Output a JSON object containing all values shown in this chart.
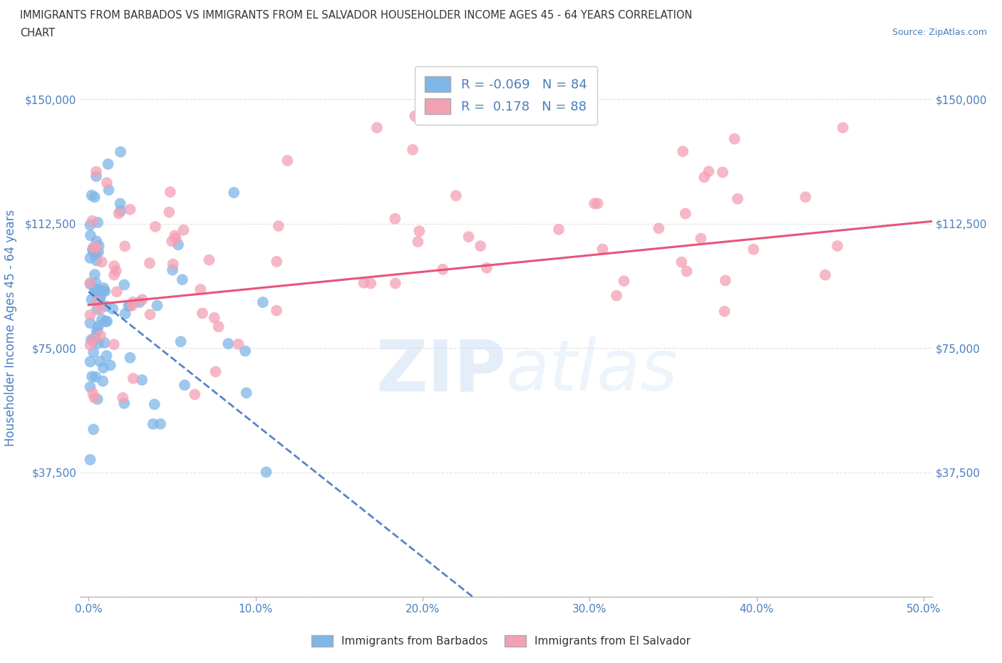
{
  "title_line1": "IMMIGRANTS FROM BARBADOS VS IMMIGRANTS FROM EL SALVADOR HOUSEHOLDER INCOME AGES 45 - 64 YEARS CORRELATION",
  "title_line2": "CHART",
  "source": "Source: ZipAtlas.com",
  "ylabel": "Householder Income Ages 45 - 64 years",
  "xlim": [
    -0.005,
    0.505
  ],
  "ylim": [
    0,
    162000
  ],
  "yticks": [
    0,
    37500,
    75000,
    112500,
    150000
  ],
  "ytick_labels": [
    "",
    "$37,500",
    "$75,000",
    "$112,500",
    "$150,000"
  ],
  "xticks": [
    0.0,
    0.1,
    0.2,
    0.3,
    0.4,
    0.5
  ],
  "xtick_labels": [
    "0.0%",
    "10.0%",
    "20.0%",
    "30.0%",
    "40.0%",
    "50.0%"
  ],
  "barbados_color": "#7eb6e8",
  "salvador_color": "#f4a0b4",
  "barbados_R": -0.069,
  "barbados_N": 84,
  "salvador_R": 0.178,
  "salvador_N": 88,
  "barbados_line_color": "#3a6fbd",
  "salvador_line_color": "#e8547a",
  "legend_label_barbados": "Immigrants from Barbados",
  "legend_label_salvador": "Immigrants from El Salvador",
  "watermark": "ZIPatlas",
  "title_color": "#4a7ebf",
  "axis_label_color": "#4a7ebf",
  "tick_label_color": "#4a7ebf",
  "background_color": "#ffffff"
}
